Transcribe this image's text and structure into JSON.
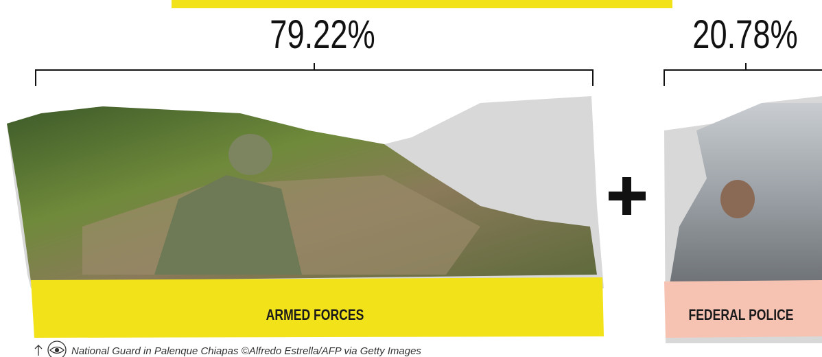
{
  "segments": [
    {
      "percent": "79.22%",
      "label": "ARMED FORCES"
    },
    {
      "percent": "20.78%",
      "label": "FEDERAL POLICE"
    }
  ],
  "caption": "National Guard in Palenque Chiapas ©Alfredo Estrella/AFP via Getty Images"
}
